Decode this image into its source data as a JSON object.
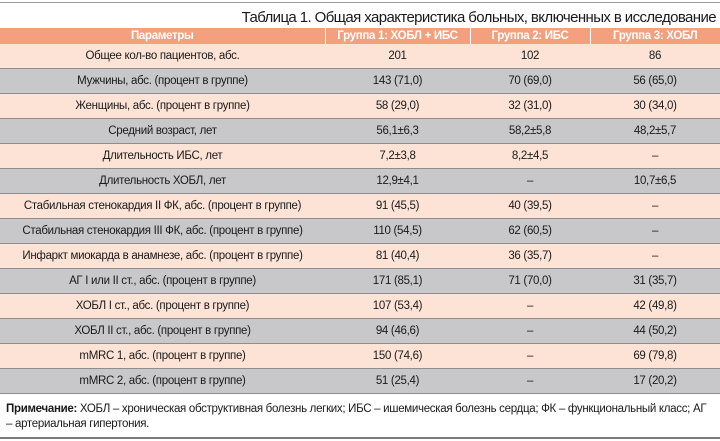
{
  "title": "Таблица 1. Общая характеристика больных, включенных в исследование",
  "colors": {
    "header": "#f4a07f",
    "row_pink": "#fce3d6",
    "row_gray": "#c8c8ca"
  },
  "columns": [
    "Параметры",
    "Группа 1: ХОБЛ + ИБС",
    "Группа 2: ИБС",
    "Группа 3: ХОБЛ"
  ],
  "rows": [
    [
      "Общее кол-во пациентов, абс.",
      "201",
      "102",
      "86"
    ],
    [
      "Мужчины, абс. (процент в группе)",
      "143 (71,0)",
      "70 (69,0)",
      "56 (65,0)"
    ],
    [
      "Женщины, абс. (процент в группе)",
      "58 (29,0)",
      "32 (31,0)",
      "30 (34,0)"
    ],
    [
      "Средний возраст, лет",
      "56,1±6,3",
      "58,2±5,8",
      "48,2±5,7"
    ],
    [
      "Длительность ИБС, лет",
      "7,2±3,8",
      "8,2±4,5",
      "–"
    ],
    [
      "Длительность ХОБЛ, лет",
      "12,9±4,1",
      "–",
      "10,7±6,5"
    ],
    [
      "Стабильная стенокардия II ФК, абс. (процент в группе)",
      "91 (45,5)",
      "40 (39,5)",
      "–"
    ],
    [
      "Стабильная стенокардия III ФК, абс. (процент в группе)",
      "110 (54,5)",
      "62 (60,5)",
      "–"
    ],
    [
      "Инфаркт миокарда в анамнезе, абс. (процент в группе)",
      "81 (40,4)",
      "36 (35,7)",
      "–"
    ],
    [
      "АГ I или II ст., абс. (процент в группе)",
      "171 (85,1)",
      "71 (70,0)",
      "31 (35,7)"
    ],
    [
      "ХОБЛ I ст., абс. (процент в группе)",
      "107 (53,4)",
      "–",
      "42 (49,8)"
    ],
    [
      "ХОБЛ II ст., абс. (процент в группе)",
      "94 (46,6)",
      "–",
      "44 (50,2)"
    ],
    [
      "mMRC 1, абс. (процент в группе)",
      "150 (74,6)",
      "–",
      "69 (79,8)"
    ],
    [
      "mMRC 2, абс. (процент в группе)",
      "51 (25,4)",
      "–",
      "17 (20,2)"
    ]
  ],
  "note": {
    "label": "Примечание:",
    "text": " ХОБЛ – хроническая обструктивная болезнь легких; ИБС – ишемическая болезнь сердца; ФК – функциональный класс; АГ – артериальная гипертония."
  }
}
